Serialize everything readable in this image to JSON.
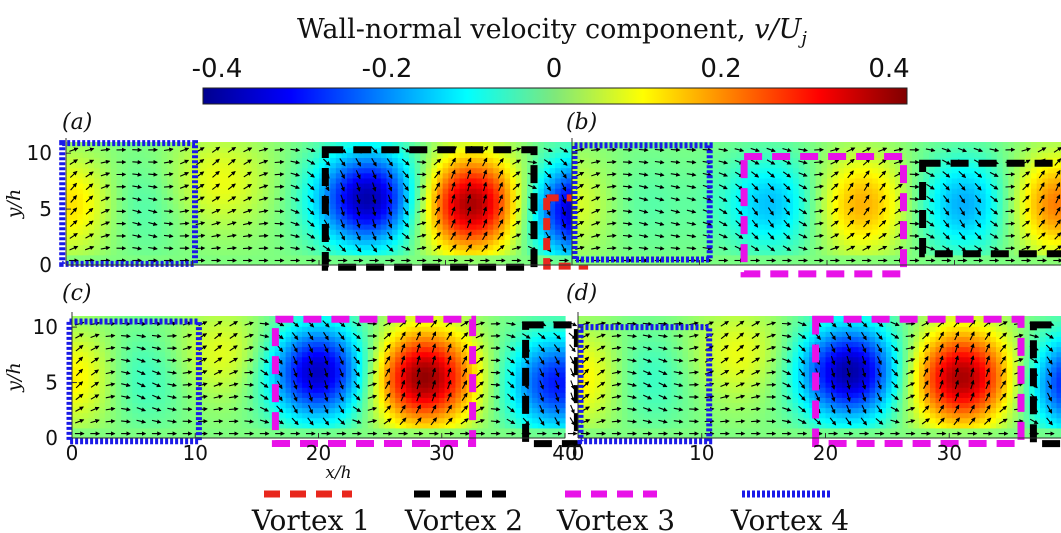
{
  "figure": {
    "colorbar": {
      "title": "Wall-normal velocity component, ",
      "title_math_symbol": "v/U",
      "title_math_sub": "j",
      "ticks": [
        "-0.4",
        "-0.2",
        "0",
        "0.2",
        "0.4"
      ],
      "range": [
        -0.45,
        0.45
      ],
      "colormap": "jet"
    },
    "panels": [
      {
        "label": "(a)",
        "show_ylabel": true,
        "show_xticks": false
      },
      {
        "label": "(b)",
        "show_ylabel": false,
        "show_xticks": false
      },
      {
        "label": "(c)",
        "show_ylabel": true,
        "show_xticks": true
      },
      {
        "label": "(d)",
        "show_ylabel": false,
        "show_xticks": true
      }
    ],
    "ylabel": "y/h",
    "xlabel": "x/h",
    "yticks": [
      "10",
      "5",
      "0"
    ],
    "xticks": [
      "0",
      "10",
      "20",
      "30",
      "40"
    ],
    "legend": [
      {
        "label": "Vortex 1",
        "color": "#e8271d",
        "style": "dashed"
      },
      {
        "label": "Vortex 2",
        "color": "#000000",
        "style": "dashed"
      },
      {
        "label": "Vortex 3",
        "color": "#e812e8",
        "style": "dashed"
      },
      {
        "label": "Vortex 4",
        "color": "#1a1ae8",
        "style": "dotted"
      }
    ]
  },
  "chart_data": {
    "type": "heatmap",
    "title": "Wall-normal velocity component, v/U_j",
    "xlabel": "x/h",
    "ylabel": "y/h",
    "xlim": [
      0,
      40
    ],
    "ylim": [
      0,
      11
    ],
    "clim": [
      -0.45,
      0.45
    ],
    "panels": [
      {
        "label": "(a)",
        "blobs": [
          {
            "x": 4.5,
            "y": 5.5,
            "v": -0.1
          },
          {
            "x": 1.0,
            "y": 5.5,
            "v": 0.18
          },
          {
            "x": 12.0,
            "y": 7.5,
            "v": 0.1
          },
          {
            "x": 24.0,
            "y": 6.0,
            "v": -0.42
          },
          {
            "x": 32.0,
            "y": 5.5,
            "v": 0.43
          },
          {
            "x": 40.5,
            "y": 5.0,
            "v": -0.4
          }
        ],
        "vortices": [
          {
            "vortex": "Vortex 4",
            "x": [
              -0.3,
              10.2
            ],
            "y": [
              0.1,
              10.9
            ]
          },
          {
            "vortex": "Vortex 2",
            "x": [
              20.5,
              37.0
            ],
            "y": [
              -0.2,
              10.3
            ]
          },
          {
            "vortex": "Vortex 1",
            "x": [
              38.0,
              41.0
            ],
            "y": [
              -0.1,
              6.0
            ]
          }
        ]
      },
      {
        "label": "(b)",
        "blobs": [
          {
            "x": 4.0,
            "y": 5.5,
            "v": -0.08
          },
          {
            "x": 1.0,
            "y": 5.5,
            "v": 0.12
          },
          {
            "x": 16.0,
            "y": 5.5,
            "v": -0.18
          },
          {
            "x": 22.5,
            "y": 5.5,
            "v": 0.2
          },
          {
            "x": 31.0,
            "y": 5.5,
            "v": -0.2
          },
          {
            "x": 38.0,
            "y": 5.5,
            "v": 0.24
          }
        ],
        "vortices": [
          {
            "vortex": "Vortex 4",
            "x": [
              0.2,
              10.8
            ],
            "y": [
              0.5,
              10.7
            ]
          },
          {
            "vortex": "Vortex 3",
            "x": [
              13.5,
              26.0
            ],
            "y": [
              -0.8,
              9.7
            ]
          },
          {
            "vortex": "Vortex 2",
            "x": [
              27.5,
              40.5
            ],
            "y": [
              1.0,
              9.1
            ]
          }
        ]
      },
      {
        "label": "(c)",
        "blobs": [
          {
            "x": 4.5,
            "y": 5.5,
            "v": -0.12
          },
          {
            "x": 1.0,
            "y": 5.5,
            "v": 0.17
          },
          {
            "x": 12.5,
            "y": 7.5,
            "v": 0.1
          },
          {
            "x": 20.0,
            "y": 6.0,
            "v": -0.4
          },
          {
            "x": 28.5,
            "y": 5.5,
            "v": 0.44
          },
          {
            "x": 39.5,
            "y": 5.0,
            "v": -0.32
          }
        ],
        "vortices": [
          {
            "vortex": "Vortex 4",
            "x": [
              -0.2,
              10.3
            ],
            "y": [
              -0.3,
              10.5
            ]
          },
          {
            "vortex": "Vortex 3",
            "x": [
              16.5,
              32.5
            ],
            "y": [
              -0.5,
              10.7
            ]
          },
          {
            "vortex": "Vortex 2",
            "x": [
              36.8,
              41.0
            ],
            "y": [
              -0.5,
              10.2
            ]
          }
        ]
      },
      {
        "label": "(d)",
        "blobs": [
          {
            "x": 4.5,
            "y": 5.5,
            "v": -0.12
          },
          {
            "x": 1.0,
            "y": 5.5,
            "v": 0.17
          },
          {
            "x": 13.0,
            "y": 7.5,
            "v": 0.1
          },
          {
            "x": 22.0,
            "y": 6.0,
            "v": -0.42
          },
          {
            "x": 31.0,
            "y": 5.5,
            "v": 0.42
          },
          {
            "x": 40.5,
            "y": 5.0,
            "v": -0.35
          }
        ],
        "vortices": [
          {
            "vortex": "Vortex 4",
            "x": [
              0.2,
              10.6
            ],
            "y": [
              -0.3,
              10.0
            ]
          },
          {
            "vortex": "Vortex 3",
            "x": [
              19.2,
              35.8
            ],
            "y": [
              -0.5,
              10.7
            ]
          },
          {
            "vortex": "Vortex 2",
            "x": [
              36.8,
              41.0
            ],
            "y": [
              -0.5,
              10.2
            ]
          }
        ]
      }
    ]
  }
}
